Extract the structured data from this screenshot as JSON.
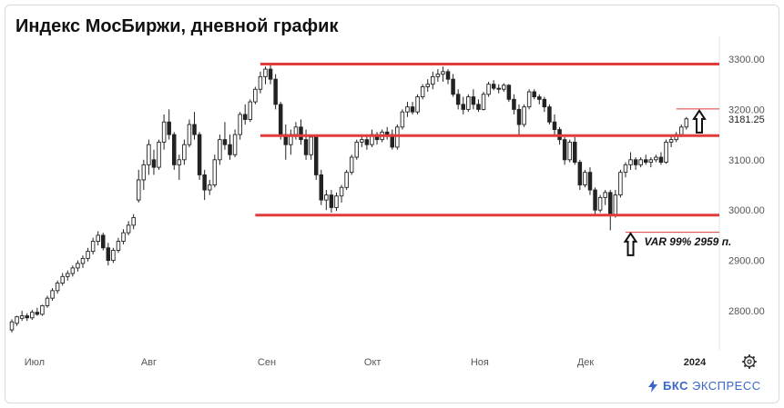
{
  "chart_data": {
    "type": "candlestick",
    "title": "Индекс МосБиржи, дневной график",
    "ylim": [
      2740,
      3330
    ],
    "y_ticks": [
      {
        "value": 3300,
        "label": "3300.00"
      },
      {
        "value": 3200,
        "label": "3200.00"
      },
      {
        "value": 3100,
        "label": "3100.00"
      },
      {
        "value": 3000,
        "label": "3000.00"
      },
      {
        "value": 2900,
        "label": "2900.00"
      },
      {
        "value": 2800,
        "label": "2800.00"
      }
    ],
    "x_ticks": [
      {
        "index": 3,
        "label": "Июл"
      },
      {
        "index": 26,
        "label": "Авг"
      },
      {
        "index": 49,
        "label": "Сен"
      },
      {
        "index": 70,
        "label": "Окт"
      },
      {
        "index": 91,
        "label": "Ноя"
      },
      {
        "index": 112,
        "label": "Дек"
      },
      {
        "index": 133,
        "label": "2024"
      }
    ],
    "last_price": {
      "value": 3181.25,
      "label": "3181.25"
    },
    "levels": [
      {
        "value": 3290,
        "from_index": 49,
        "style": "major"
      },
      {
        "value": 3148,
        "from_index": 49,
        "style": "major"
      },
      {
        "value": 2990,
        "from_index": 48,
        "style": "major"
      },
      {
        "value": 3201,
        "from_index": 131,
        "style": "minor"
      },
      {
        "value": 2956,
        "from_index": 121,
        "style": "minor"
      }
    ],
    "annotation": {
      "text": "VAR 99% 2959 п.",
      "index": 122,
      "value": 2959
    },
    "colors": {
      "level": "#e23b3b",
      "candle": "#222222",
      "axis_text": "#555555"
    },
    "ohlc": [
      [
        2762,
        2783,
        2757,
        2778
      ],
      [
        2775,
        2790,
        2770,
        2788
      ],
      [
        2785,
        2800,
        2780,
        2790
      ],
      [
        2790,
        2795,
        2780,
        2786
      ],
      [
        2786,
        2802,
        2782,
        2797
      ],
      [
        2797,
        2806,
        2790,
        2793
      ],
      [
        2793,
        2812,
        2790,
        2810
      ],
      [
        2810,
        2830,
        2806,
        2825
      ],
      [
        2825,
        2845,
        2820,
        2840
      ],
      [
        2840,
        2860,
        2834,
        2855
      ],
      [
        2855,
        2875,
        2850,
        2868
      ],
      [
        2868,
        2880,
        2860,
        2874
      ],
      [
        2874,
        2890,
        2868,
        2885
      ],
      [
        2885,
        2900,
        2878,
        2894
      ],
      [
        2894,
        2910,
        2885,
        2904
      ],
      [
        2904,
        2925,
        2898,
        2918
      ],
      [
        2918,
        2945,
        2912,
        2938
      ],
      [
        2938,
        2958,
        2930,
        2950
      ],
      [
        2950,
        2955,
        2920,
        2925
      ],
      [
        2925,
        2935,
        2890,
        2900
      ],
      [
        2900,
        2925,
        2895,
        2920
      ],
      [
        2920,
        2945,
        2915,
        2938
      ],
      [
        2938,
        2962,
        2932,
        2955
      ],
      [
        2955,
        2978,
        2950,
        2970
      ],
      [
        2970,
        2992,
        2962,
        2985
      ],
      [
        3020,
        3080,
        3015,
        3060
      ],
      [
        3060,
        3100,
        3040,
        3090
      ],
      [
        3090,
        3140,
        3070,
        3130
      ],
      [
        3100,
        3120,
        3070,
        3085
      ],
      [
        3085,
        3140,
        3080,
        3135
      ],
      [
        3135,
        3190,
        3120,
        3175
      ],
      [
        3175,
        3200,
        3140,
        3150
      ],
      [
        3150,
        3155,
        3080,
        3090
      ],
      [
        3090,
        3110,
        3060,
        3100
      ],
      [
        3100,
        3140,
        3090,
        3130
      ],
      [
        3130,
        3180,
        3125,
        3170
      ],
      [
        3170,
        3195,
        3140,
        3150
      ],
      [
        3150,
        3155,
        3060,
        3070
      ],
      [
        3070,
        3080,
        3020,
        3040
      ],
      [
        3040,
        3060,
        3030,
        3050
      ],
      [
        3050,
        3110,
        3045,
        3100
      ],
      [
        3100,
        3150,
        3090,
        3140
      ],
      [
        3140,
        3175,
        3120,
        3130
      ],
      [
        3130,
        3150,
        3100,
        3110
      ],
      [
        3110,
        3160,
        3105,
        3150
      ],
      [
        3150,
        3195,
        3140,
        3190
      ],
      [
        3190,
        3210,
        3170,
        3180
      ],
      [
        3180,
        3220,
        3175,
        3215
      ],
      [
        3215,
        3245,
        3210,
        3240
      ],
      [
        3240,
        3275,
        3232,
        3265
      ],
      [
        3265,
        3285,
        3250,
        3280
      ],
      [
        3280,
        3290,
        3250,
        3260
      ],
      [
        3260,
        3270,
        3200,
        3210
      ],
      [
        3210,
        3215,
        3140,
        3150
      ],
      [
        3150,
        3170,
        3100,
        3130
      ],
      [
        3130,
        3160,
        3110,
        3150
      ],
      [
        3150,
        3175,
        3140,
        3165
      ],
      [
        3165,
        3180,
        3130,
        3140
      ],
      [
        3140,
        3160,
        3100,
        3110
      ],
      [
        3110,
        3150,
        3100,
        3145
      ],
      [
        3145,
        3150,
        3060,
        3070
      ],
      [
        3070,
        3080,
        3010,
        3020
      ],
      [
        3020,
        3040,
        3000,
        3030
      ],
      [
        3030,
        3040,
        2995,
        3005
      ],
      [
        3005,
        3035,
        2998,
        3028
      ],
      [
        3028,
        3050,
        3015,
        3045
      ],
      [
        3045,
        3080,
        3040,
        3075
      ],
      [
        3075,
        3110,
        3070,
        3105
      ],
      [
        3105,
        3140,
        3100,
        3135
      ],
      [
        3135,
        3150,
        3125,
        3140
      ],
      [
        3140,
        3150,
        3120,
        3130
      ],
      [
        3130,
        3160,
        3125,
        3150
      ],
      [
        3150,
        3155,
        3130,
        3140
      ],
      [
        3140,
        3160,
        3135,
        3155
      ],
      [
        3155,
        3165,
        3140,
        3150
      ],
      [
        3150,
        3160,
        3120,
        3125
      ],
      [
        3125,
        3170,
        3120,
        3165
      ],
      [
        3165,
        3200,
        3160,
        3195
      ],
      [
        3195,
        3215,
        3185,
        3205
      ],
      [
        3205,
        3215,
        3190,
        3195
      ],
      [
        3195,
        3230,
        3190,
        3225
      ],
      [
        3225,
        3250,
        3220,
        3245
      ],
      [
        3245,
        3260,
        3235,
        3250
      ],
      [
        3250,
        3275,
        3240,
        3265
      ],
      [
        3265,
        3280,
        3255,
        3270
      ],
      [
        3270,
        3285,
        3255,
        3275
      ],
      [
        3275,
        3280,
        3250,
        3260
      ],
      [
        3260,
        3270,
        3225,
        3230
      ],
      [
        3230,
        3240,
        3200,
        3210
      ],
      [
        3210,
        3225,
        3190,
        3200
      ],
      [
        3200,
        3230,
        3195,
        3225
      ],
      [
        3225,
        3240,
        3200,
        3210
      ],
      [
        3210,
        3220,
        3195,
        3200
      ],
      [
        3200,
        3235,
        3198,
        3230
      ],
      [
        3230,
        3255,
        3225,
        3250
      ],
      [
        3250,
        3258,
        3238,
        3242
      ],
      [
        3242,
        3250,
        3232,
        3240
      ],
      [
        3240,
        3252,
        3235,
        3248
      ],
      [
        3248,
        3250,
        3215,
        3220
      ],
      [
        3220,
        3230,
        3190,
        3200
      ],
      [
        3200,
        3210,
        3150,
        3170
      ],
      [
        3170,
        3210,
        3165,
        3205
      ],
      [
        3205,
        3240,
        3200,
        3235
      ],
      [
        3235,
        3240,
        3220,
        3225
      ],
      [
        3225,
        3230,
        3210,
        3220
      ],
      [
        3220,
        3225,
        3195,
        3205
      ],
      [
        3205,
        3210,
        3170,
        3175
      ],
      [
        3175,
        3190,
        3150,
        3160
      ],
      [
        3160,
        3165,
        3130,
        3140
      ],
      [
        3140,
        3145,
        3090,
        3100
      ],
      [
        3100,
        3140,
        3095,
        3135
      ],
      [
        3135,
        3145,
        3090,
        3095
      ],
      [
        3095,
        3100,
        3040,
        3050
      ],
      [
        3050,
        3080,
        3045,
        3075
      ],
      [
        3075,
        3085,
        3030,
        3040
      ],
      [
        3040,
        3045,
        2990,
        3000
      ],
      [
        3000,
        3030,
        2995,
        3025
      ],
      [
        3025,
        3040,
        3010,
        3035
      ],
      [
        3035,
        3040,
        2960,
        2990
      ],
      [
        2990,
        3040,
        2985,
        3030
      ],
      [
        3030,
        3080,
        3025,
        3075
      ],
      [
        3075,
        3095,
        3065,
        3090
      ],
      [
        3090,
        3115,
        3080,
        3100
      ],
      [
        3100,
        3105,
        3080,
        3090
      ],
      [
        3090,
        3105,
        3085,
        3100
      ],
      [
        3100,
        3110,
        3090,
        3095
      ],
      [
        3095,
        3105,
        3085,
        3100
      ],
      [
        3100,
        3110,
        3095,
        3105
      ],
      [
        3105,
        3115,
        3090,
        3095
      ],
      [
        3095,
        3140,
        3092,
        3135
      ],
      [
        3135,
        3150,
        3125,
        3140
      ],
      [
        3140,
        3155,
        3135,
        3150
      ],
      [
        3150,
        3170,
        3145,
        3165
      ],
      [
        3165,
        3185,
        3160,
        3181.25
      ]
    ]
  },
  "ui": {
    "settings_icon": "gear-icon",
    "watermark_brand": "БКС",
    "watermark_text": "ЭКСПРЕСС",
    "watermark_icon": "bolt-icon"
  }
}
